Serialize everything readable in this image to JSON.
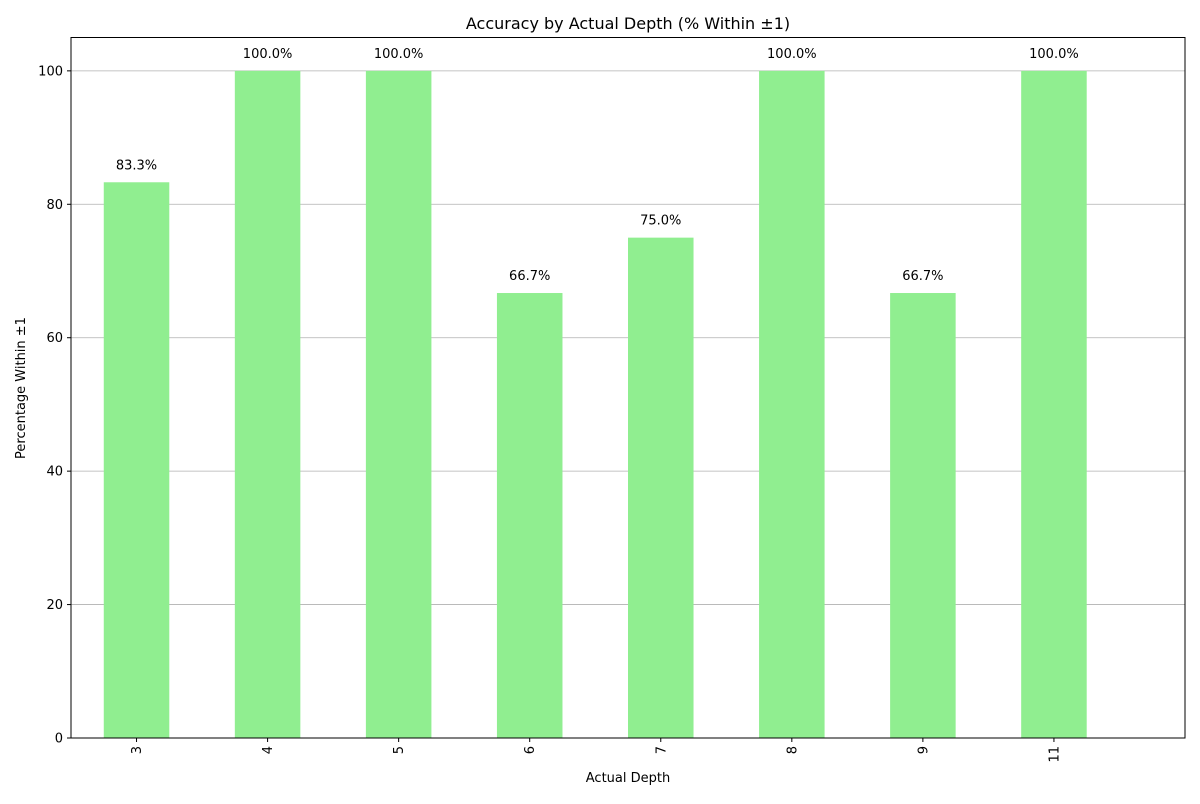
{
  "chart_data": {
    "type": "bar",
    "title": "Accuracy by Actual Depth (% Within ±1)",
    "xlabel": "Actual Depth",
    "ylabel": "Percentage Within ±1",
    "categories": [
      "3",
      "4",
      "5",
      "6",
      "7",
      "8",
      "9",
      "11"
    ],
    "values": [
      83.3,
      100.0,
      100.0,
      66.7,
      75.0,
      100.0,
      66.7,
      100.0
    ],
    "data_labels": [
      "83.3%",
      "100.0%",
      "100.0%",
      "66.7%",
      "75.0%",
      "100.0%",
      "66.7%",
      "100.0%"
    ],
    "ylim": [
      0,
      105
    ],
    "yticks": [
      0,
      20,
      40,
      60,
      80,
      100
    ],
    "grid": "y",
    "legend": "none",
    "bar_color": "#90ee90",
    "x_tick_rotation": "vertical"
  }
}
